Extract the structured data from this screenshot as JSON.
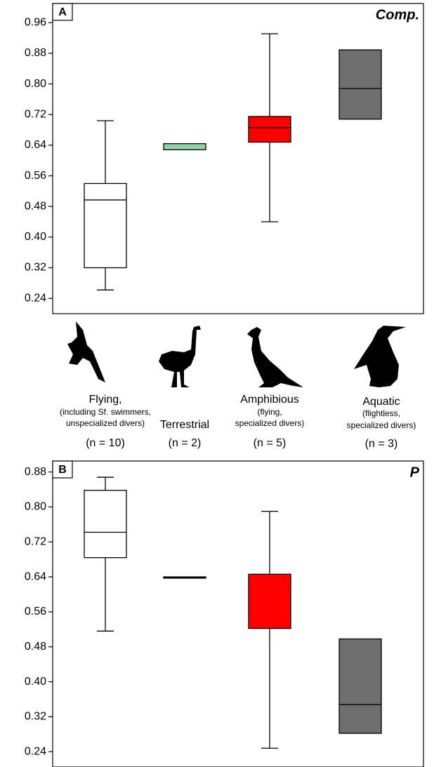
{
  "chart_data": [
    {
      "type": "box",
      "panel_label": "A",
      "title": "Comp.",
      "ylim": [
        0.2,
        1.01
      ],
      "yticks": [
        0.96,
        0.88,
        {
          "value": 0.8,
          "label": "0.80"
        },
        0.72,
        0.64,
        0.56,
        0.48,
        {
          "value": 0.4,
          "label": "0.40"
        },
        0.32,
        0.24
      ],
      "boxes": [
        {
          "color": "#ffffff",
          "whisker_high": 0.704,
          "q3": 0.54,
          "median": 0.497,
          "q1": 0.32,
          "whisker_low": 0.262
        },
        {
          "color": "#8fd3a0",
          "whisker_high": null,
          "q3": 0.644,
          "median": null,
          "q1": 0.628,
          "whisker_low": null
        },
        {
          "color": "#ff0000",
          "whisker_high": 0.931,
          "q3": 0.715,
          "median": 0.686,
          "q1": 0.648,
          "whisker_low": 0.44
        },
        {
          "color": "#6e6e6e",
          "whisker_high": null,
          "q3": 0.889,
          "median": 0.788,
          "q1": 0.708,
          "whisker_low": null
        }
      ]
    },
    {
      "type": "box",
      "panel_label": "B",
      "title": "P",
      "ylim": [
        0.205,
        0.905
      ],
      "yticks": [
        0.88,
        {
          "value": 0.8,
          "label": "0.80"
        },
        0.72,
        0.64,
        0.56,
        0.48,
        {
          "value": 0.4,
          "label": "0.40"
        },
        0.32,
        0.24
      ],
      "boxes": [
        {
          "color": "#ffffff",
          "whisker_high": 0.868,
          "q3": 0.838,
          "median": 0.742,
          "q1": 0.684,
          "whisker_low": 0.516
        },
        {
          "color": "#000000",
          "whisker_high": null,
          "q3": 0.64,
          "median": null,
          "q1": 0.637,
          "whisker_low": null
        },
        {
          "color": "#ff0000",
          "whisker_high": 0.79,
          "q3": 0.646,
          "median": null,
          "q1": 0.522,
          "whisker_low": 0.248
        },
        {
          "color": "#6e6e6e",
          "whisker_high": null,
          "q3": 0.498,
          "median": 0.348,
          "q1": 0.282,
          "whisker_low": null
        }
      ]
    }
  ],
  "groups": [
    {
      "name": "Flying,",
      "detail": [
        "(including Sf. swimmers,",
        "unspecialized divers)"
      ],
      "n": "(n = 10)"
    },
    {
      "name": "Terrestrial",
      "detail": [],
      "n": "(n = 2)"
    },
    {
      "name": "Amphibious",
      "detail": [
        "(flying,",
        "specialized divers)"
      ],
      "n": "(n = 5)"
    },
    {
      "name": "Aquatic",
      "detail": [
        "(flightless,",
        "specialized divers)"
      ],
      "n": "(n = 3)"
    }
  ]
}
